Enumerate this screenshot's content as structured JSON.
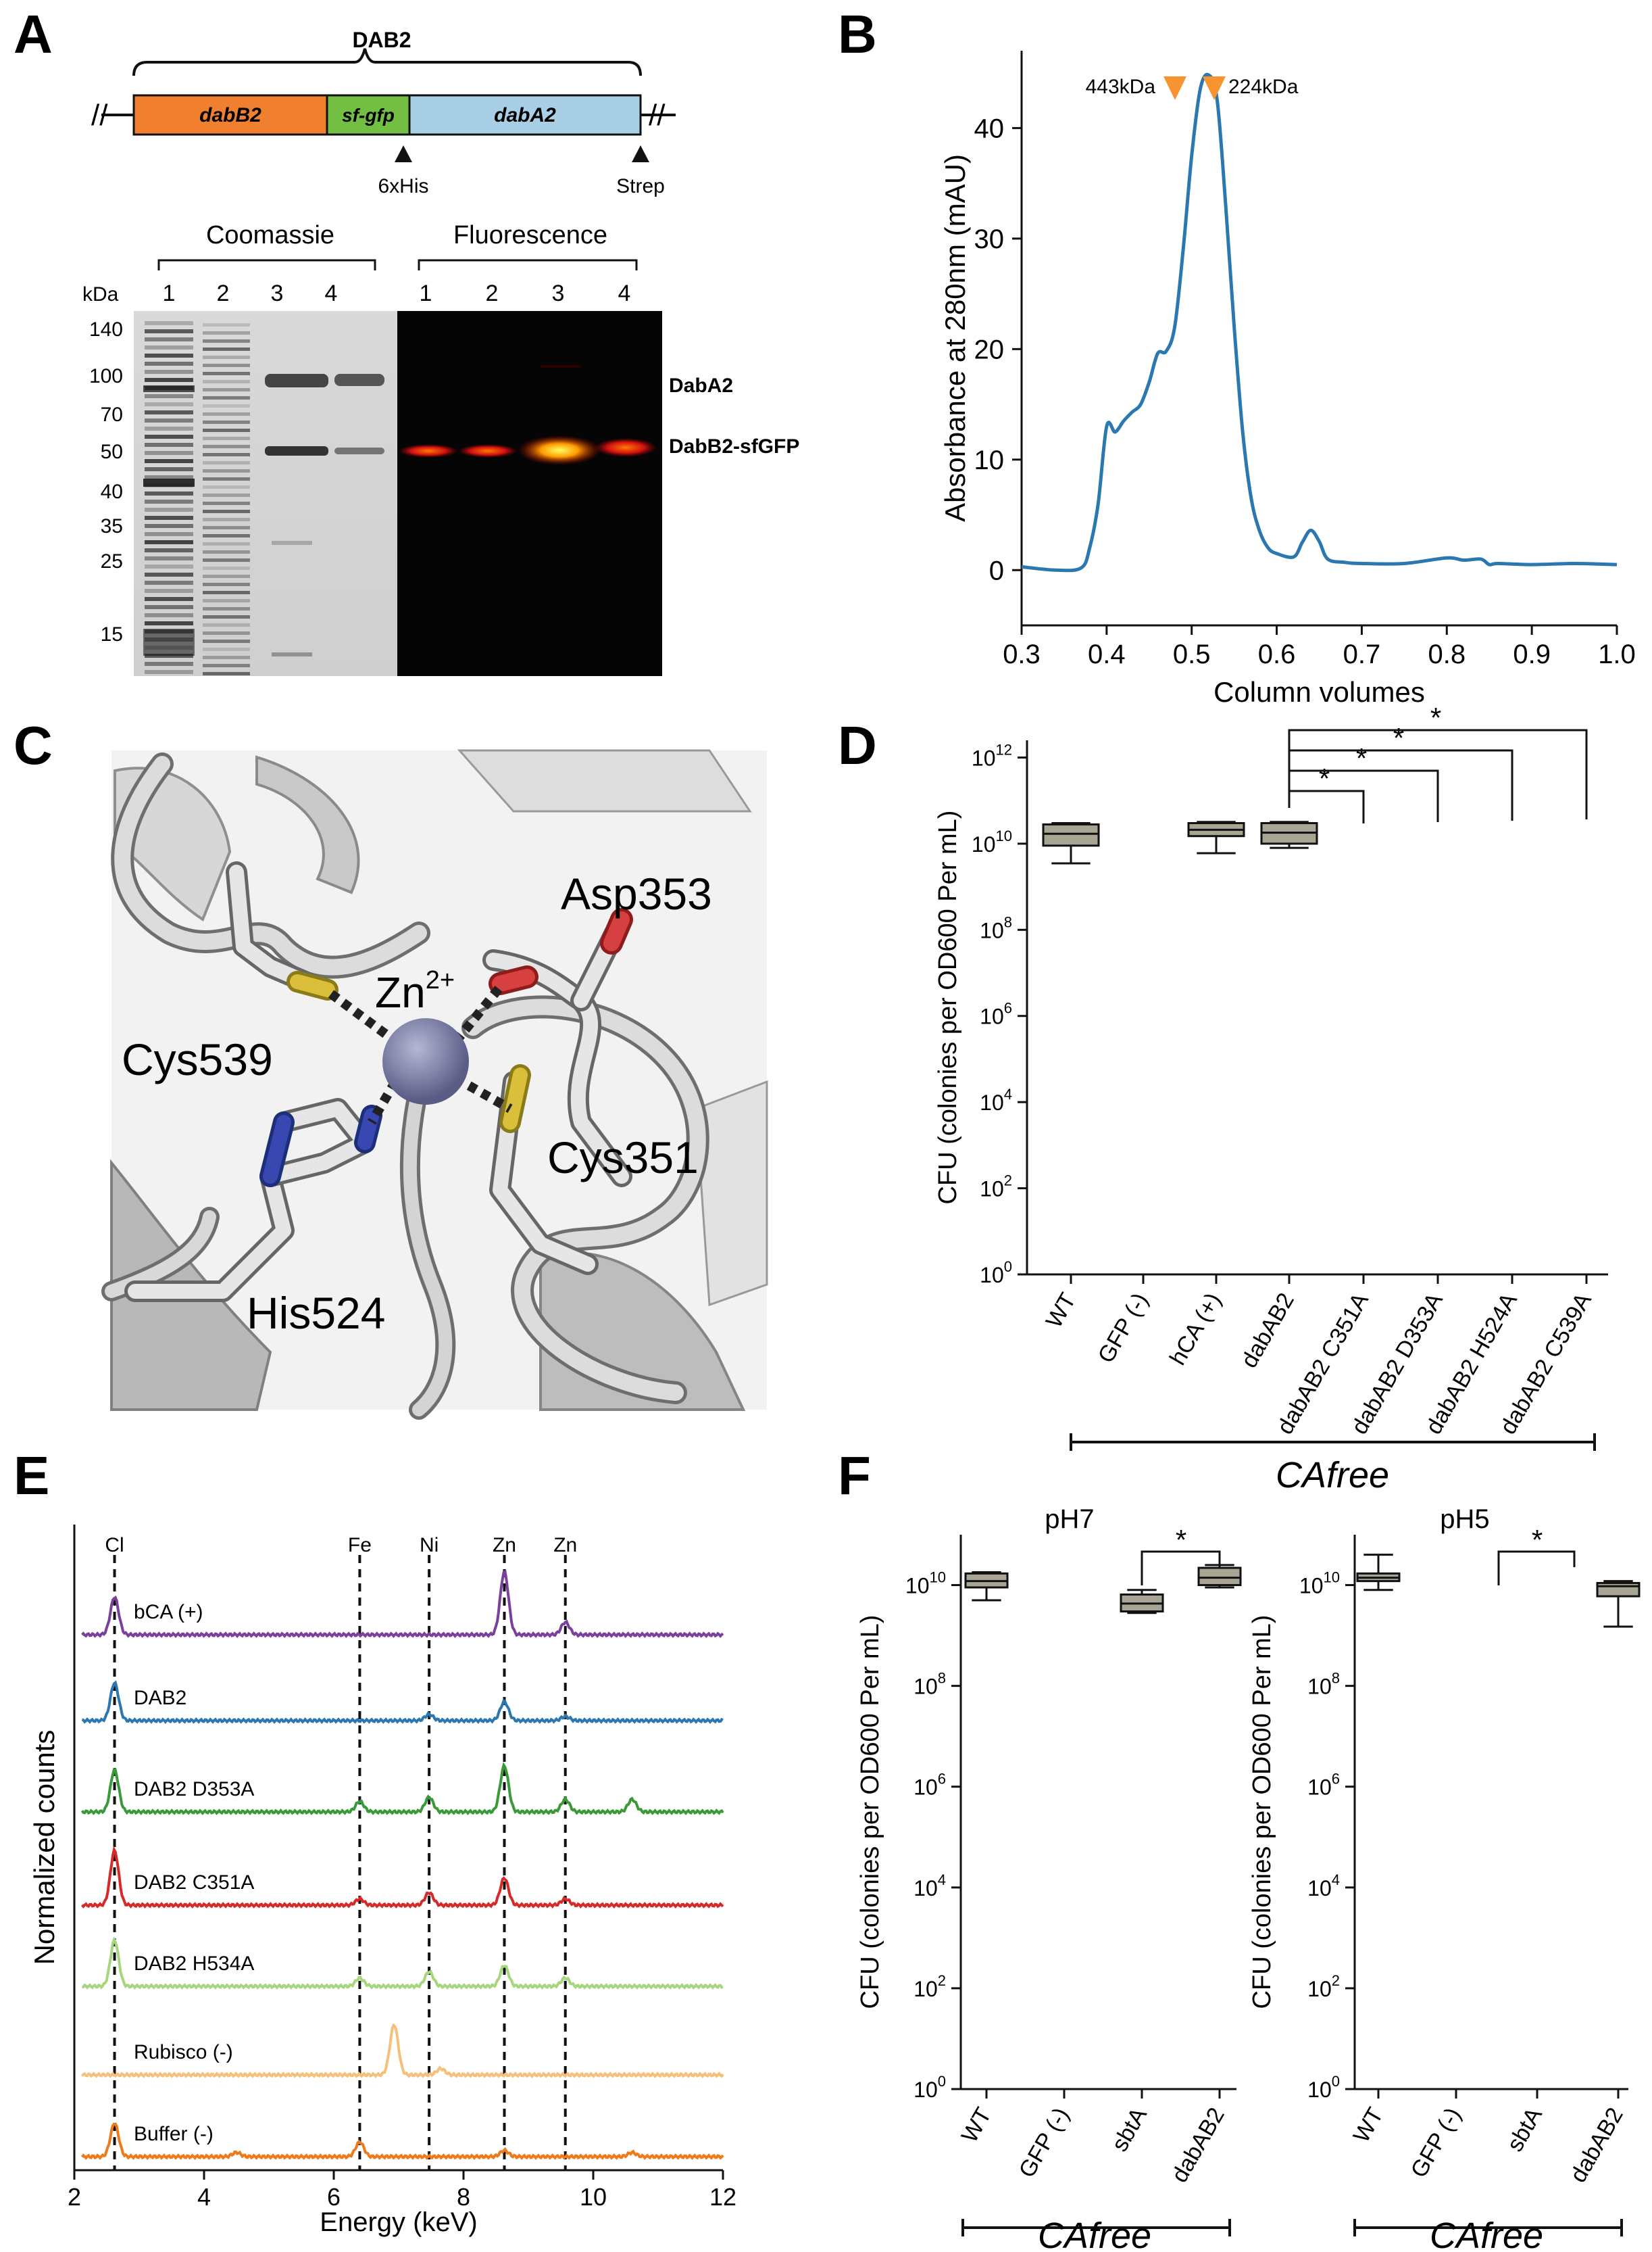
{
  "panels": {
    "A": {
      "label": "A",
      "construct_title": "DAB2",
      "genes": {
        "dabB2": "dabB2",
        "sfgfp": "sf-gfp",
        "dabA2": "dabA2"
      },
      "tags": {
        "his": "6xHis",
        "strep": "Strep"
      },
      "colors": {
        "dabB2": "#f08030",
        "sfgfp": "#72bf44",
        "dabA2": "#a8cfe6"
      },
      "gel": {
        "coomassie_label": "Coomassie",
        "fluor_label": "Fluorescence",
        "kda_label": "kDa",
        "lanes": [
          "1",
          "2",
          "3",
          "4"
        ],
        "markers": [
          "140",
          "100",
          "70",
          "50",
          "40",
          "35",
          "25",
          "15"
        ],
        "band_labels": [
          "DabA2",
          "DabB2-sfGFP"
        ]
      }
    },
    "B": {
      "label": "B",
      "markers": [
        "443kDa",
        "224kDa"
      ],
      "marker_color": "#f79430",
      "chart_data": {
        "type": "line",
        "title": "",
        "xlabel": "Column volumes",
        "ylabel": "Absorbance at 280nm (mAU)",
        "xlim": [
          0.3,
          1.0
        ],
        "ylim": [
          -5,
          47
        ],
        "xticks": [
          "0.3",
          "0.4",
          "0.5",
          "0.6",
          "0.7",
          "0.8",
          "0.9",
          "1.0"
        ],
        "yticks": [
          "0",
          "10",
          "20",
          "30",
          "40"
        ],
        "color": "#2b77b0",
        "x": [
          0.3,
          0.34,
          0.37,
          0.38,
          0.39,
          0.4,
          0.41,
          0.42,
          0.43,
          0.44,
          0.45,
          0.46,
          0.47,
          0.48,
          0.49,
          0.5,
          0.51,
          0.52,
          0.53,
          0.54,
          0.55,
          0.56,
          0.57,
          0.58,
          0.59,
          0.6,
          0.62,
          0.63,
          0.64,
          0.65,
          0.66,
          0.68,
          0.7,
          0.75,
          0.8,
          0.82,
          0.84,
          0.85,
          0.86,
          0.9,
          0.95,
          1.0
        ],
        "y": [
          0.3,
          0.0,
          0.2,
          2.0,
          6.0,
          13.0,
          12.5,
          13.5,
          14.3,
          15.0,
          17.0,
          19.6,
          19.8,
          22.0,
          29.0,
          37.5,
          43.5,
          44.8,
          42.5,
          33.0,
          22.0,
          12.5,
          6.5,
          3.5,
          2.0,
          1.5,
          1.2,
          2.5,
          3.6,
          2.6,
          1.0,
          0.7,
          0.6,
          0.6,
          1.1,
          0.9,
          1.0,
          0.5,
          0.6,
          0.5,
          0.6,
          0.5
        ]
      }
    },
    "C": {
      "label": "C",
      "residues": [
        "Asp353",
        "Cys539",
        "His524",
        "Cys351"
      ],
      "ion": "Zn",
      "ion_charge": "2+"
    },
    "D": {
      "label": "D",
      "group_label": "CAfree",
      "chart_data": {
        "type": "box",
        "title": "",
        "ylabel": "CFU (colonies per OD600 Per mL)",
        "yscale": "log",
        "ylim": [
          1,
          1000000000000.0
        ],
        "ytick_bases": [
          "10",
          "10",
          "10",
          "10",
          "10",
          "10",
          "10"
        ],
        "ytick_exps": [
          "0",
          "2",
          "4",
          "6",
          "8",
          "10",
          "12"
        ],
        "categories": [
          "WT",
          "GFP (-)",
          "hCA (+)",
          "dabAB2",
          "dabAB2 C351A",
          "dabAB2 D353A",
          "dabAB2 H524A",
          "dabAB2 C539A"
        ],
        "boxes": [
          {
            "category": "WT",
            "whisker_low": 3500000000.0,
            "q1": 9000000000.0,
            "median": 17000000000.0,
            "q3": 28000000000.0,
            "whisker_high": 30000000000.0
          },
          {
            "category": "GFP (-)",
            "whisker_low": null
          },
          {
            "category": "hCA (+)",
            "whisker_low": 6000000000.0,
            "q1": 15000000000.0,
            "median": 21000000000.0,
            "q3": 30000000000.0,
            "whisker_high": 32000000000.0
          },
          {
            "category": "dabAB2",
            "whisker_low": 8000000000.0,
            "q1": 10000000000.0,
            "median": 18000000000.0,
            "q3": 30000000000.0,
            "whisker_high": 32000000000.0
          },
          {
            "category": "dabAB2 C351A",
            "whisker_low": null
          },
          {
            "category": "dabAB2 D353A",
            "whisker_low": null
          },
          {
            "category": "dabAB2 H524A",
            "whisker_low": null
          },
          {
            "category": "dabAB2 C539A",
            "whisker_low": null
          }
        ],
        "significance": [
          "*",
          "*",
          "*",
          "*"
        ]
      }
    },
    "E": {
      "label": "E",
      "chart_data": {
        "type": "line",
        "title": "",
        "xlabel": "Energy (keV)",
        "ylabel": "Normalized counts",
        "xlim": [
          2,
          12
        ],
        "xticks": [
          "2",
          "4",
          "6",
          "8",
          "10",
          "12"
        ],
        "element_lines": [
          {
            "label": "Cl",
            "energy": 2.62
          },
          {
            "label": "Fe",
            "energy": 6.4
          },
          {
            "label": "Ni",
            "energy": 7.47
          },
          {
            "label": "Zn",
            "energy": 8.63
          },
          {
            "label": "Zn",
            "energy": 9.57
          }
        ],
        "series": [
          {
            "name": "bCA (+)",
            "color": "#7b3f9e",
            "peaks": [
              [
                2.62,
                0.9
              ],
              [
                8.63,
                1.5
              ],
              [
                9.57,
                0.3
              ]
            ]
          },
          {
            "name": "DAB2",
            "color": "#2b77b0",
            "peaks": [
              [
                2.62,
                0.9
              ],
              [
                7.47,
                0.15
              ],
              [
                8.63,
                0.45
              ],
              [
                9.57,
                0.1
              ]
            ]
          },
          {
            "name": "DAB2 D353A",
            "color": "#3a9a3a",
            "peaks": [
              [
                2.62,
                1.0
              ],
              [
                6.4,
                0.25
              ],
              [
                7.47,
                0.35
              ],
              [
                8.63,
                1.1
              ],
              [
                9.57,
                0.3
              ],
              [
                10.6,
                0.3
              ]
            ]
          },
          {
            "name": "DAB2 C351A",
            "color": "#d62a28",
            "peaks": [
              [
                2.62,
                1.3
              ],
              [
                6.4,
                0.15
              ],
              [
                7.47,
                0.3
              ],
              [
                8.63,
                0.65
              ],
              [
                9.57,
                0.15
              ]
            ]
          },
          {
            "name": "DAB2 H534A",
            "color": "#a7d67f",
            "peaks": [
              [
                2.62,
                1.1
              ],
              [
                6.4,
                0.2
              ],
              [
                7.47,
                0.35
              ],
              [
                8.63,
                0.5
              ],
              [
                9.57,
                0.2
              ]
            ]
          },
          {
            "name": "Rubisco (-)",
            "color": "#f7c07a",
            "peaks": [
              [
                6.93,
                1.2
              ],
              [
                7.65,
                0.15
              ]
            ]
          },
          {
            "name": "Buffer (-)",
            "color": "#ef7a1a",
            "peaks": [
              [
                2.62,
                0.8
              ],
              [
                4.5,
                0.1
              ],
              [
                6.4,
                0.35
              ],
              [
                8.63,
                0.15
              ],
              [
                10.6,
                0.1
              ]
            ]
          }
        ]
      }
    },
    "F": {
      "label": "F",
      "group_label_left": "CAfree",
      "group_label_right": "CAfree",
      "chart_data": [
        {
          "type": "box",
          "title": "pH7",
          "ylabel": "CFU (colonies per OD600 Per mL)",
          "yscale": "log",
          "ylim": [
            1,
            100000000000.0
          ],
          "ytick_bases": [
            "10",
            "10",
            "10",
            "10",
            "10",
            "10"
          ],
          "ytick_exps": [
            "0",
            "2",
            "4",
            "6",
            "8",
            "10"
          ],
          "categories": [
            "WT",
            "GFP (-)",
            "sbtA",
            "dabAB2"
          ],
          "boxes": [
            {
              "category": "WT",
              "whisker_low": 5000000000.0,
              "q1": 9000000000.0,
              "median": 12000000000.0,
              "q3": 17000000000.0,
              "whisker_high": 18000000000.0
            },
            {
              "category": "GFP (-)",
              "whisker_low": null
            },
            {
              "category": "sbtA",
              "whisker_low": 2800000000.0,
              "q1": 3000000000.0,
              "median": 4300000000.0,
              "q3": 6500000000.0,
              "whisker_high": 8000000000.0
            },
            {
              "category": "dabAB2",
              "whisker_low": 9000000000.0,
              "q1": 10000000000.0,
              "median": 14000000000.0,
              "q3": 22000000000.0,
              "whisker_high": 25000000000.0
            }
          ],
          "significance": [
            "*"
          ]
        },
        {
          "type": "box",
          "title": "pH5",
          "ylabel": "CFU (colonies per OD600 Per mL)",
          "yscale": "log",
          "ylim": [
            1,
            100000000000.0
          ],
          "ytick_bases": [
            "10",
            "10",
            "10",
            "10",
            "10",
            "10"
          ],
          "ytick_exps": [
            "0",
            "2",
            "4",
            "6",
            "8",
            "10"
          ],
          "categories": [
            "WT",
            "GFP (-)",
            "sbtA",
            "dabAB2"
          ],
          "boxes": [
            {
              "category": "WT",
              "whisker_low": 8000000000.0,
              "q1": 12000000000.0,
              "median": 14000000000.0,
              "q3": 17000000000.0,
              "whisker_high": 40000000000.0
            },
            {
              "category": "GFP (-)",
              "whisker_low": null
            },
            {
              "category": "sbtA",
              "whisker_low": null
            },
            {
              "category": "dabAB2",
              "whisker_low": 1500000000.0,
              "q1": 6000000000.0,
              "median": 9500000000.0,
              "q3": 11000000000.0,
              "whisker_high": 12000000000.0
            }
          ],
          "significance": [
            "*"
          ]
        }
      ]
    }
  }
}
